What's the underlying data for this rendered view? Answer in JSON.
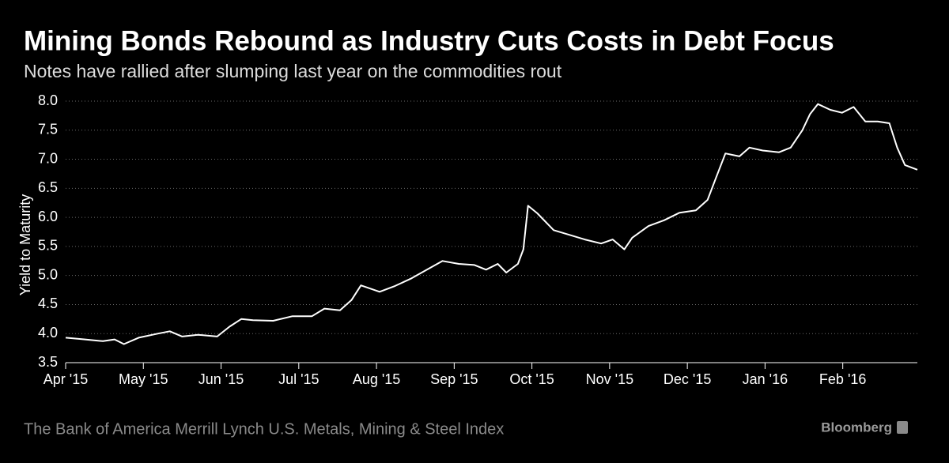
{
  "chart_data": {
    "type": "line",
    "title": "Mining Bonds Rebound as Industry Cuts Costs in Debt Focus",
    "subtitle": "Notes have rallied after slumping last year on the commodities rout",
    "y_label": "Yield to Maturity",
    "source": "The Bank of America Merrill Lynch U.S. Metals, Mining & Steel Index",
    "brand": "Bloomberg",
    "grid": true,
    "xlim": [
      0,
      10.96
    ],
    "xticks": [
      {
        "value": 0,
        "label": "Apr '15"
      },
      {
        "value": 1,
        "label": "May '15"
      },
      {
        "value": 2,
        "label": "Jun '15"
      },
      {
        "value": 3,
        "label": "Jul '15"
      },
      {
        "value": 4,
        "label": "Aug '15"
      },
      {
        "value": 5,
        "label": "Sep '15"
      },
      {
        "value": 6,
        "label": "Oct '15"
      },
      {
        "value": 7,
        "label": "Nov '15"
      },
      {
        "value": 8,
        "label": "Dec '15"
      },
      {
        "value": 9,
        "label": "Jan '16"
      },
      {
        "value": 10,
        "label": "Feb '16"
      }
    ],
    "ylim": [
      3.5,
      8.0
    ],
    "yticks": [
      3.5,
      {
        "value": 4.0,
        "label": "4.0"
      },
      4.5,
      {
        "value": 5.0,
        "label": "5.0"
      },
      5.5,
      {
        "value": 6.0,
        "label": "6.0"
      },
      6.5,
      {
        "value": 7.0,
        "label": "7.0"
      },
      7.5,
      {
        "value": 8.0,
        "label": "8.0"
      }
    ],
    "x": [
      0,
      0.25,
      0.48,
      0.63,
      0.75,
      0.94,
      1.19,
      1.34,
      1.5,
      1.7,
      1.95,
      2.11,
      2.26,
      2.41,
      2.67,
      2.92,
      3.17,
      3.33,
      3.53,
      3.68,
      3.8,
      4.04,
      4.24,
      4.45,
      4.65,
      4.85,
      5.06,
      5.26,
      5.41,
      5.56,
      5.67,
      5.82,
      5.89,
      5.95,
      6.07,
      6.28,
      6.48,
      6.68,
      6.89,
      7.04,
      7.19,
      7.29,
      7.5,
      7.7,
      7.9,
      8.11,
      8.26,
      8.36,
      8.49,
      8.67,
      8.8,
      8.97,
      9.18,
      9.33,
      9.48,
      9.58,
      9.68,
      9.84,
      9.99,
      10.14,
      10.29,
      10.45,
      10.6,
      10.7,
      10.8,
      10.96
    ],
    "series": [
      {
        "color": "#ffffff",
        "values": [
          3.93,
          3.9,
          3.87,
          3.9,
          3.82,
          3.93,
          4.0,
          4.04,
          3.95,
          3.98,
          3.95,
          4.12,
          4.25,
          4.23,
          4.22,
          4.3,
          4.3,
          4.43,
          4.4,
          4.58,
          4.83,
          4.72,
          4.82,
          4.95,
          5.1,
          5.25,
          5.2,
          5.18,
          5.1,
          5.2,
          5.05,
          5.2,
          5.45,
          6.2,
          6.07,
          5.78,
          5.7,
          5.62,
          5.55,
          5.62,
          5.45,
          5.65,
          5.85,
          5.95,
          6.08,
          6.12,
          6.3,
          6.65,
          7.1,
          7.05,
          7.2,
          7.15,
          7.12,
          7.2,
          7.5,
          7.78,
          7.95,
          7.85,
          7.8,
          7.9,
          7.65,
          7.65,
          7.62,
          7.2,
          6.9,
          6.82
        ]
      }
    ]
  }
}
